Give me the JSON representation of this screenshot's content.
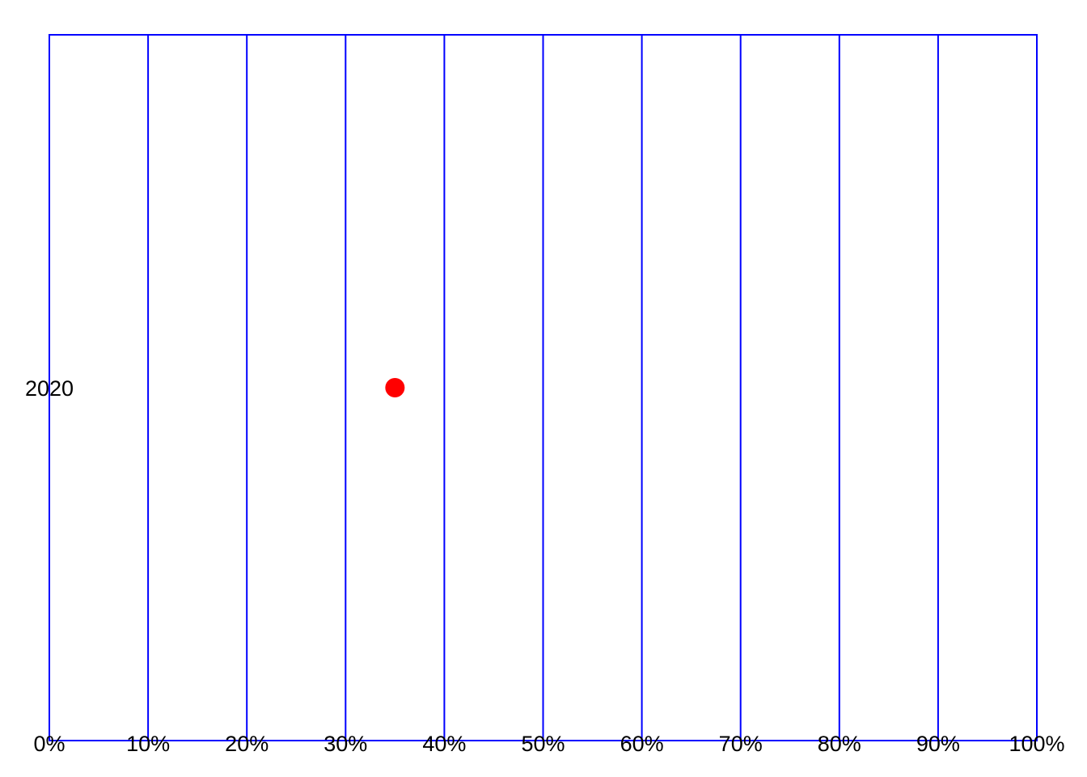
{
  "chart_data": {
    "type": "scatter",
    "title": "",
    "xlabel": "",
    "ylabel": "",
    "xlim": [
      0,
      100
    ],
    "x_ticks": [
      0,
      10,
      20,
      30,
      40,
      50,
      60,
      70,
      80,
      90,
      100
    ],
    "x_tick_labels": [
      "0%",
      "10%",
      "20%",
      "30%",
      "40%",
      "50%",
      "60%",
      "70%",
      "80%",
      "90%",
      "100%"
    ],
    "categories": [
      "2020"
    ],
    "series": [
      {
        "points": [
          {
            "category": "2020",
            "x": 35
          }
        ]
      }
    ],
    "grid": true,
    "grid_color": "#0000ff",
    "point_color": "#ff0000"
  }
}
